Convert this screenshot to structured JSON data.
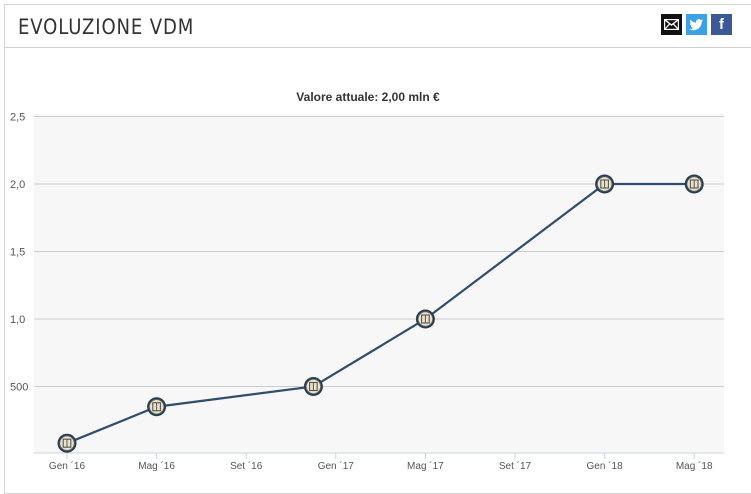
{
  "header": {
    "title": "EVOLUZIONE VDM",
    "share": {
      "mail_icon": "mail-icon",
      "twitter_icon": "twitter-icon",
      "facebook_icon": "facebook-icon",
      "facebook_glyph": "f"
    }
  },
  "chart_data": {
    "type": "line",
    "title": "Valore attuale: 2,00 mln €",
    "xlabel": "",
    "ylabel": "",
    "ylim": [
      0.08,
      2.5
    ],
    "grid": true,
    "y_ticks": [
      "2,5",
      "2,0",
      "1,5",
      "1,0",
      "500"
    ],
    "y_tick_values": [
      2.5,
      2.0,
      1.5,
      1.0,
      0.5
    ],
    "x_ticks": [
      "Gen ´16",
      "Mag ´16",
      "Set ´16",
      "Gen ´17",
      "Mag ´17",
      "Set ´17",
      "Gen ´18",
      "Mag ´18"
    ],
    "x_tick_months": [
      0,
      4,
      8,
      12,
      16,
      20,
      24,
      28
    ],
    "series": [
      {
        "points": [
          {
            "x": "2016-01",
            "y": 0.08
          },
          {
            "x": "2016-05",
            "y": 0.35
          },
          {
            "x": "2016-12",
            "y": 0.5
          },
          {
            "x": "2017-05",
            "y": 1.0
          },
          {
            "x": "2018-01",
            "y": 2.0
          },
          {
            "x": "2018-05",
            "y": 2.0
          }
        ]
      }
    ],
    "line_color": "#2f4d6e",
    "marker_icon": "club-crest-icon"
  }
}
